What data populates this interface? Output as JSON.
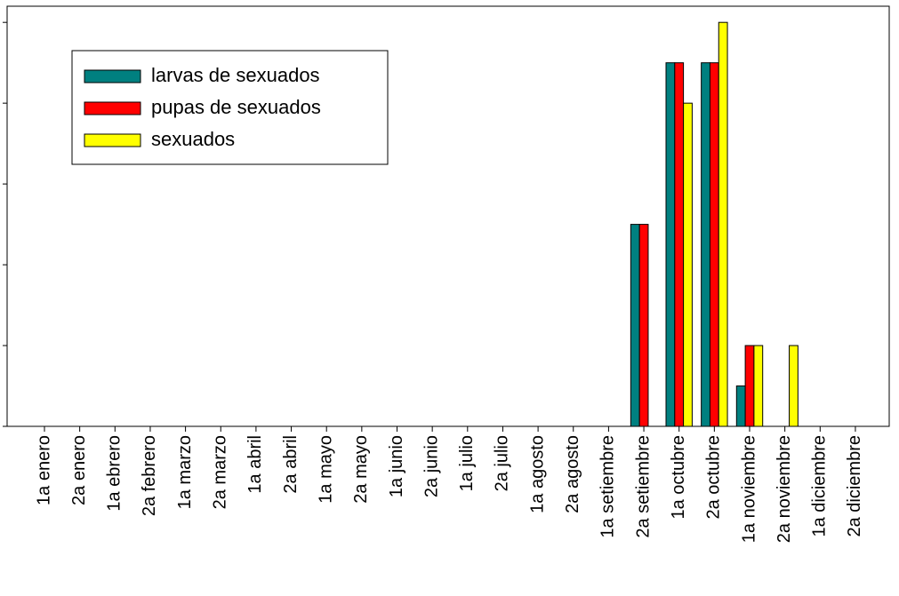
{
  "chart_data": {
    "type": "bar",
    "categories": [
      "1a enero",
      "2a enero",
      "1a ebrero",
      "2a febrero",
      "1a marzo",
      "2a marzo",
      "1a abril",
      "2a abril",
      "1a mayo",
      "2a mayo",
      "1a junio",
      "2a junio",
      "1a julio",
      "2a julio",
      "1a agosto",
      "2a agosto",
      "1a setiembre",
      "2a setiembre",
      "1a octubre",
      "2a octubre",
      "1a noviembre",
      "2a noviembre",
      "1a diciembre",
      "2a diciembre"
    ],
    "series": [
      {
        "name": "larvas de sexuados",
        "color": "#008080",
        "values": [
          0,
          0,
          0,
          0,
          0,
          0,
          0,
          0,
          0,
          0,
          0,
          0,
          0,
          0,
          0,
          0,
          0,
          2.5,
          4.5,
          4.5,
          0.5,
          0,
          0,
          0
        ]
      },
      {
        "name": "pupas de sexuados",
        "color": "#ff0000",
        "values": [
          0,
          0,
          0,
          0,
          0,
          0,
          0,
          0,
          0,
          0,
          0,
          0,
          0,
          0,
          0,
          0,
          0,
          2.5,
          4.5,
          4.5,
          1,
          0,
          0,
          0
        ]
      },
      {
        "name": "sexuados",
        "color": "#ffff00",
        "values": [
          0,
          0,
          0,
          0,
          0,
          0,
          0,
          0,
          0,
          0,
          0,
          0,
          0,
          0,
          0,
          0,
          0,
          0,
          4,
          5,
          1,
          1,
          0,
          0
        ]
      }
    ],
    "ylim": [
      0,
      5.2
    ],
    "yticks": [
      0,
      1,
      2,
      3,
      4,
      5
    ]
  }
}
